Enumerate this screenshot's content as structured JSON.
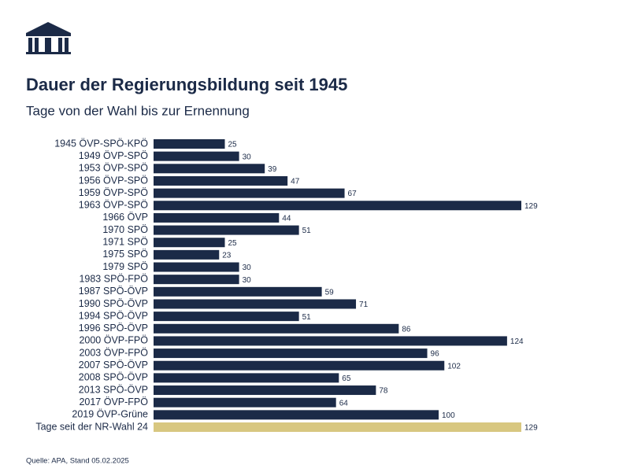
{
  "chart_data": {
    "type": "bar",
    "orientation": "horizontal",
    "title": "Dauer der Regierungsbildung seit 1945",
    "subtitle": "Tage von der Wahl bis zur Ernennung",
    "source": "Quelle: APA, Stand 05.02.2025",
    "categories": [
      "1945 ÖVP-SPÖ-KPÖ",
      "1949 ÖVP-SPÖ",
      "1953 ÖVP-SPÖ",
      "1956 ÖVP-SPÖ",
      "1959 ÖVP-SPÖ",
      "1963 ÖVP-SPÖ",
      "1966 ÖVP",
      "1970 SPÖ",
      "1971 SPÖ",
      "1975 SPÖ",
      "1979 SPÖ",
      "1983 SPÖ-FPÖ",
      "1987 SPÖ-ÖVP",
      "1990 SPÖ-ÖVP",
      "1994 SPÖ-ÖVP",
      "1996 SPÖ-ÖVP",
      "2000 ÖVP-FPÖ",
      "2003 ÖVP-FPÖ",
      "2007 SPÖ-ÖVP",
      "2008 SPÖ-ÖVP",
      "2013 SPÖ-ÖVP",
      "2017 ÖVP-FPÖ",
      "2019 ÖVP-Grüne",
      "Tage seit der NR-Wahl 24"
    ],
    "values": [
      25,
      30,
      39,
      47,
      67,
      129,
      44,
      51,
      25,
      23,
      30,
      30,
      59,
      71,
      51,
      86,
      124,
      96,
      102,
      65,
      78,
      64,
      100,
      129
    ],
    "colors": [
      "#1b2a47",
      "#1b2a47",
      "#1b2a47",
      "#1b2a47",
      "#1b2a47",
      "#1b2a47",
      "#1b2a47",
      "#1b2a47",
      "#1b2a47",
      "#1b2a47",
      "#1b2a47",
      "#1b2a47",
      "#1b2a47",
      "#1b2a47",
      "#1b2a47",
      "#1b2a47",
      "#1b2a47",
      "#1b2a47",
      "#1b2a47",
      "#1b2a47",
      "#1b2a47",
      "#1b2a47",
      "#1b2a47",
      "#d8c780"
    ]
  }
}
